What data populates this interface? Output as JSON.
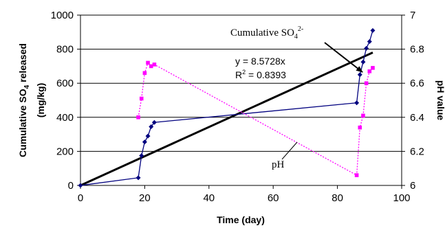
{
  "chart_data": {
    "type": "line",
    "xlabel": "Time (day)",
    "ylabel": "Cumulative SO4 released (mg/kg)",
    "ylabel_main": "Cumulative SO",
    "ylabel_sub": "4",
    "ylabel_tail": " released",
    "ylabel_units": "(mg/kg)",
    "y2label": "pH value",
    "xlim": [
      0,
      100
    ],
    "ylim": [
      0,
      1000
    ],
    "y2lim": [
      6,
      7
    ],
    "x_ticks": [
      "0",
      "20",
      "40",
      "60",
      "80",
      "100"
    ],
    "y_ticks": [
      "0",
      "200",
      "400",
      "600",
      "800",
      "1000"
    ],
    "y2_ticks": [
      "6",
      "6.2",
      "6.4",
      "6.6",
      "6.8",
      "7"
    ],
    "grid": "horizontal",
    "series": [
      {
        "name": "Cumulative SO4 2-",
        "axis": "left",
        "color": "#00007f",
        "marker": "diamond",
        "x": [
          0,
          18,
          19,
          20,
          21,
          22,
          23,
          86,
          87,
          88,
          89,
          90,
          91
        ],
        "y": [
          0,
          45,
          175,
          255,
          290,
          345,
          370,
          485,
          650,
          725,
          805,
          845,
          910
        ]
      },
      {
        "name": "pH",
        "axis": "right",
        "color": "#ff00ff",
        "marker": "square",
        "line": "dotted",
        "x": [
          18,
          19,
          20,
          21,
          22,
          23,
          86,
          87,
          88,
          89,
          90,
          91
        ],
        "y": [
          6.4,
          6.51,
          6.66,
          6.72,
          6.7,
          6.71,
          6.06,
          6.34,
          6.41,
          6.6,
          6.67,
          6.69
        ]
      }
    ],
    "trendline": {
      "type": "linear",
      "slope": 8.5728,
      "x": [
        0,
        91
      ],
      "color": "#000000",
      "equation_text": "y = 8.5728x",
      "r2_prefix": "R",
      "r2_sup": "2",
      "r2_value": " = 0.8393"
    },
    "annotations": {
      "so4_label_main": "Cumulative SO",
      "so4_label_sub": "4",
      "so4_label_sup": "2-",
      "ph_label": "pH"
    }
  }
}
